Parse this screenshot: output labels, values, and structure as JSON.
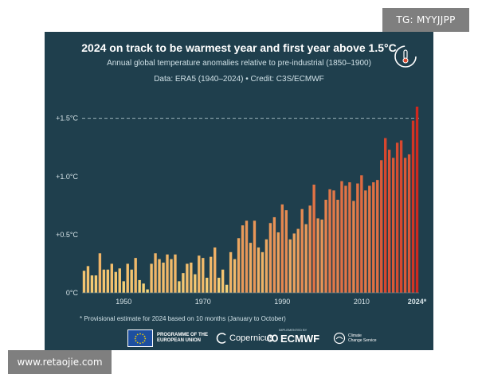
{
  "watermarks": {
    "top": "TG: MYYJJPP",
    "bottom": "www.retaojie.com"
  },
  "header": {
    "title": "2024 on track to be warmest year and first year above 1.5°C",
    "subtitle": "Annual global temperature anomalies relative to pre-industrial (1850–1900)",
    "source": "Data: ERA5 (1940–2024) • Credit: C3S/ECMWF"
  },
  "footnote": "* Provisional estimate for 2024 based on 10 months (January to October)",
  "logos": {
    "eu_line1": "PROGRAMME OF THE",
    "eu_line2": "EUROPEAN UNION",
    "copernicus": "Copernicus",
    "ecmwf_super": "IMPLEMENTED BY",
    "ecmwf": "ECMWF",
    "c3s_line1": "Climate",
    "c3s_line2": "Change Service"
  },
  "colors": {
    "background": "#1f3f4d",
    "bar_low": "#f7d77a",
    "bar_high": "#d0281e",
    "grid": "#5f7e88",
    "dashed_line": "#9fb5bd"
  },
  "icon": "thermometer-icon",
  "chart_data": {
    "type": "bar",
    "title": "2024 on track to be warmest year and first year above 1.5°C",
    "xlabel": "",
    "ylabel": "",
    "x": [
      1940,
      1941,
      1942,
      1943,
      1944,
      1945,
      1946,
      1947,
      1948,
      1949,
      1950,
      1951,
      1952,
      1953,
      1954,
      1955,
      1956,
      1957,
      1958,
      1959,
      1960,
      1961,
      1962,
      1963,
      1964,
      1965,
      1966,
      1967,
      1968,
      1969,
      1970,
      1971,
      1972,
      1973,
      1974,
      1975,
      1976,
      1977,
      1978,
      1979,
      1980,
      1981,
      1982,
      1983,
      1984,
      1985,
      1986,
      1987,
      1988,
      1989,
      1990,
      1991,
      1992,
      1993,
      1994,
      1995,
      1996,
      1997,
      1998,
      1999,
      2000,
      2001,
      2002,
      2003,
      2004,
      2005,
      2006,
      2007,
      2008,
      2009,
      2010,
      2011,
      2012,
      2013,
      2014,
      2015,
      2016,
      2017,
      2018,
      2019,
      2020,
      2021,
      2022,
      2023,
      2024
    ],
    "values": [
      0.19,
      0.23,
      0.15,
      0.15,
      0.34,
      0.2,
      0.2,
      0.25,
      0.18,
      0.21,
      0.1,
      0.25,
      0.2,
      0.3,
      0.11,
      0.08,
      0.03,
      0.25,
      0.34,
      0.29,
      0.26,
      0.33,
      0.29,
      0.33,
      0.1,
      0.17,
      0.25,
      0.26,
      0.16,
      0.32,
      0.3,
      0.13,
      0.31,
      0.39,
      0.13,
      0.2,
      0.07,
      0.35,
      0.29,
      0.47,
      0.58,
      0.62,
      0.43,
      0.62,
      0.39,
      0.35,
      0.46,
      0.6,
      0.65,
      0.52,
      0.76,
      0.71,
      0.46,
      0.51,
      0.55,
      0.72,
      0.59,
      0.75,
      0.93,
      0.64,
      0.63,
      0.8,
      0.89,
      0.88,
      0.8,
      0.96,
      0.92,
      0.95,
      0.79,
      0.94,
      1.01,
      0.88,
      0.92,
      0.95,
      0.97,
      1.14,
      1.33,
      1.23,
      1.16,
      1.29,
      1.31,
      1.16,
      1.19,
      1.48,
      1.6
    ],
    "tick_years": [
      1950,
      1970,
      1990,
      2010
    ],
    "last_label": "2024*",
    "yticks": [
      0,
      0.5,
      1.0,
      1.5
    ],
    "ytick_labels": [
      "0°C",
      "+0.5°C",
      "+1.0°C",
      "+1.5°C"
    ],
    "reference_line": 1.5,
    "ylim": [
      0,
      1.6
    ],
    "grid": false
  }
}
